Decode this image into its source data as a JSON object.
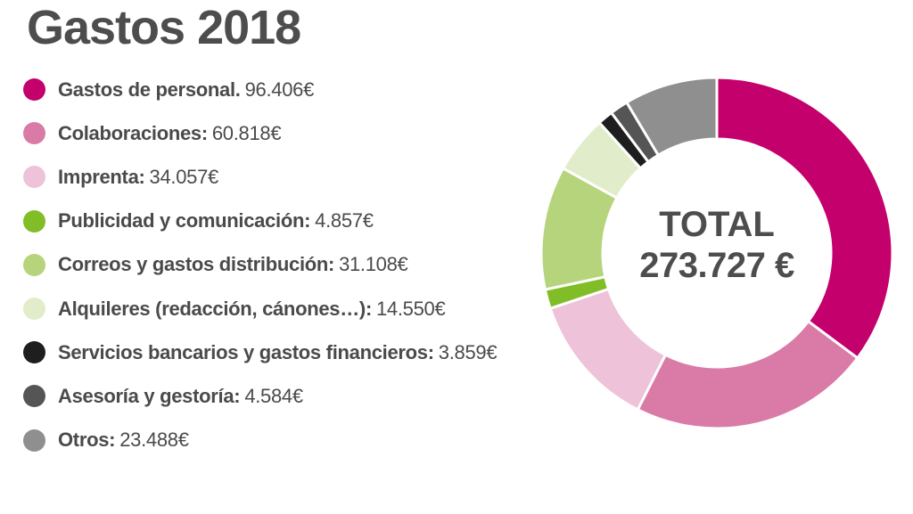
{
  "title": "Gastos 2018",
  "center": {
    "label": "TOTAL",
    "value": "273.727 €"
  },
  "chart_data": {
    "type": "pie",
    "title": "Gastos 2018",
    "total": 273727,
    "slices": [
      {
        "label": "Gastos de personal.",
        "value": 96406,
        "value_text": "96.406€",
        "color": "#c4006d"
      },
      {
        "label": "Colaboraciones:",
        "value": 60818,
        "value_text": "60.818€",
        "color": "#d97ba6"
      },
      {
        "label": "Imprenta:",
        "value": 34057,
        "value_text": "34.057€",
        "color": "#eec2d8"
      },
      {
        "label": "Publicidad y comunicación:",
        "value": 4857,
        "value_text": "4.857€",
        "color": "#80bd26"
      },
      {
        "label": "Correos y gastos distribución:",
        "value": 31108,
        "value_text": "31.108€",
        "color": "#b5d47c"
      },
      {
        "label": "Alquileres (redacción, cánones…):",
        "value": 14550,
        "value_text": "14.550€",
        "color": "#e1edca"
      },
      {
        "label": "Servicios bancarios y gastos financieros:",
        "value": 3859,
        "value_text": "3.859€",
        "color": "#1e1e1e"
      },
      {
        "label": "Asesoría y gestoría:",
        "value": 4584,
        "value_text": "4.584€",
        "color": "#555555"
      },
      {
        "label": "Otros:",
        "value": 23488,
        "value_text": "23.488€",
        "color": "#8f8f8f"
      }
    ]
  }
}
